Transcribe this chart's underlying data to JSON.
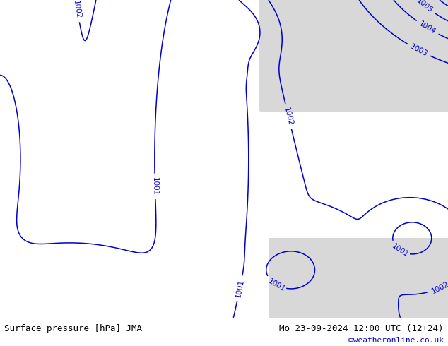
{
  "title_left": "Surface pressure [hPa] JMA",
  "title_right": "Mo 23-09-2024 12:00 UTC (12+24)",
  "copyright": "©weatheronline.co.uk",
  "bg_land_color": "#c8e896",
  "bg_sea_color": "#d8d8d8",
  "contour_color": "#0000cc",
  "contour_label_color": "#0000cc",
  "bottom_bar_color": "#cccccc",
  "bottom_bar_height": 0.082,
  "fig_width": 6.34,
  "fig_height": 4.9,
  "dpi": 100,
  "title_fontsize": 9,
  "copyright_fontsize": 8,
  "contour_label_fontsize": 7.5,
  "contour_linewidth": 1.1
}
